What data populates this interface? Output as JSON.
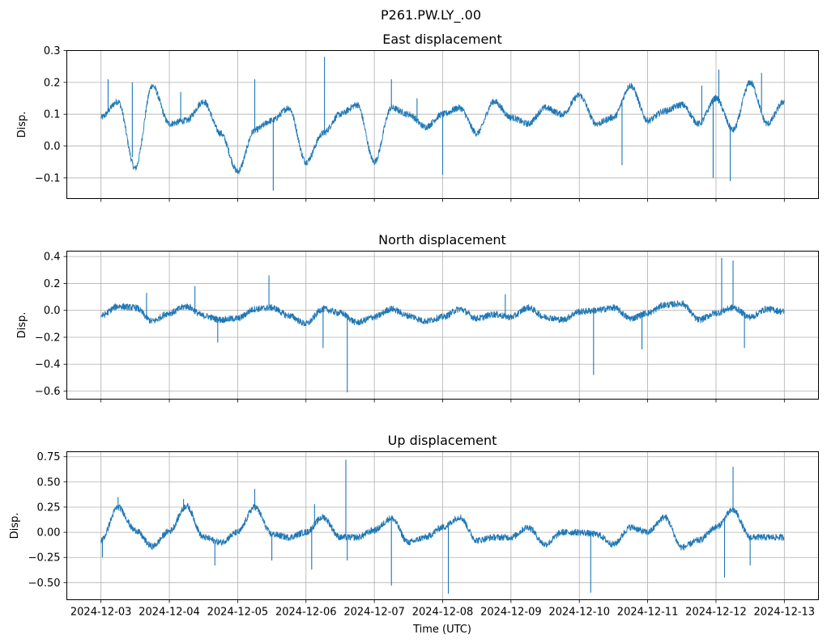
{
  "figure_title": "P261.PW.LY_.00",
  "colors": {
    "line": "#1f77b4",
    "grid": "#b0b0b0",
    "axes": "#000000"
  },
  "chart_data": [
    {
      "type": "line",
      "title": "East displacement",
      "ylabel": "Disp.",
      "xlabel": "",
      "xlim": [
        "2024-12-02T12:00",
        "2024-12-13T12:00"
      ],
      "ylim": [
        -0.165,
        0.3
      ],
      "yticks": [
        -0.1,
        0.0,
        0.1,
        0.2,
        0.3
      ],
      "ytick_labels": [
        "−0.1",
        "0.0",
        "0.1",
        "0.2",
        "0.3"
      ],
      "xtick_labels_visible": false,
      "grid": true,
      "series": [
        {
          "x": [
            "2024-12-03T00:00",
            "2024-12-03T06:00",
            "2024-12-03T12:00",
            "2024-12-03T18:00",
            "2024-12-04T00:00",
            "2024-12-04T06:00",
            "2024-12-04T12:00",
            "2024-12-04T18:00",
            "2024-12-05T00:00",
            "2024-12-05T06:00",
            "2024-12-05T12:00",
            "2024-12-05T18:00",
            "2024-12-06T00:00",
            "2024-12-06T06:00",
            "2024-12-06T12:00",
            "2024-12-06T18:00",
            "2024-12-07T00:00",
            "2024-12-07T06:00",
            "2024-12-07T12:00",
            "2024-12-07T18:00",
            "2024-12-08T00:00",
            "2024-12-08T06:00",
            "2024-12-08T12:00",
            "2024-12-08T18:00",
            "2024-12-09T00:00",
            "2024-12-09T06:00",
            "2024-12-09T12:00",
            "2024-12-09T18:00",
            "2024-12-10T00:00",
            "2024-12-10T06:00",
            "2024-12-10T12:00",
            "2024-12-10T18:00",
            "2024-12-11T00:00",
            "2024-12-11T06:00",
            "2024-12-11T12:00",
            "2024-12-11T18:00",
            "2024-12-12T00:00",
            "2024-12-12T06:00",
            "2024-12-12T12:00",
            "2024-12-12T18:00",
            "2024-12-13T00:00"
          ],
          "y": [
            0.09,
            0.14,
            -0.07,
            0.19,
            0.07,
            0.08,
            0.14,
            0.04,
            -0.08,
            0.05,
            0.08,
            0.12,
            -0.05,
            0.04,
            0.1,
            0.13,
            -0.05,
            0.12,
            0.1,
            0.06,
            0.1,
            0.12,
            0.04,
            0.14,
            0.09,
            0.07,
            0.12,
            0.1,
            0.16,
            0.07,
            0.09,
            0.19,
            0.08,
            0.11,
            0.13,
            0.07,
            0.15,
            0.05,
            0.2,
            0.07,
            0.14
          ],
          "spikes": [
            {
              "x": "2024-12-03T02:30",
              "y": 0.21
            },
            {
              "x": "2024-12-03T11:00",
              "y": 0.2
            },
            {
              "x": "2024-12-04T04:00",
              "y": 0.17
            },
            {
              "x": "2024-12-05T06:00",
              "y": 0.21
            },
            {
              "x": "2024-12-05T12:30",
              "y": -0.14
            },
            {
              "x": "2024-12-06T06:30",
              "y": 0.28
            },
            {
              "x": "2024-12-07T06:00",
              "y": 0.21
            },
            {
              "x": "2024-12-07T15:00",
              "y": 0.15
            },
            {
              "x": "2024-12-08T00:00",
              "y": -0.09
            },
            {
              "x": "2024-12-10T15:00",
              "y": -0.06
            },
            {
              "x": "2024-12-11T19:00",
              "y": 0.19
            },
            {
              "x": "2024-12-11T23:00",
              "y": -0.1
            },
            {
              "x": "2024-12-12T01:00",
              "y": 0.24
            },
            {
              "x": "2024-12-12T05:00",
              "y": -0.11
            },
            {
              "x": "2024-12-12T16:00",
              "y": 0.23
            }
          ]
        }
      ]
    },
    {
      "type": "line",
      "title": "North displacement",
      "ylabel": "Disp.",
      "xlabel": "",
      "xlim": [
        "2024-12-02T12:00",
        "2024-12-13T12:00"
      ],
      "ylim": [
        -0.66,
        0.44
      ],
      "yticks": [
        -0.6,
        -0.4,
        -0.2,
        0.0,
        0.2,
        0.4
      ],
      "ytick_labels": [
        "−0.6",
        "−0.4",
        "−0.2",
        "0.0",
        "0.2",
        "0.4"
      ],
      "xtick_labels_visible": false,
      "grid": true,
      "series": [
        {
          "x": [
            "2024-12-03T00:00",
            "2024-12-03T06:00",
            "2024-12-03T12:00",
            "2024-12-03T18:00",
            "2024-12-04T00:00",
            "2024-12-04T06:00",
            "2024-12-04T12:00",
            "2024-12-04T18:00",
            "2024-12-05T00:00",
            "2024-12-05T06:00",
            "2024-12-05T12:00",
            "2024-12-05T18:00",
            "2024-12-06T00:00",
            "2024-12-06T06:00",
            "2024-12-06T12:00",
            "2024-12-06T18:00",
            "2024-12-07T00:00",
            "2024-12-07T06:00",
            "2024-12-07T12:00",
            "2024-12-07T18:00",
            "2024-12-08T00:00",
            "2024-12-08T06:00",
            "2024-12-08T12:00",
            "2024-12-08T18:00",
            "2024-12-09T00:00",
            "2024-12-09T06:00",
            "2024-12-09T12:00",
            "2024-12-09T18:00",
            "2024-12-10T00:00",
            "2024-12-10T06:00",
            "2024-12-10T12:00",
            "2024-12-10T18:00",
            "2024-12-11T00:00",
            "2024-12-11T06:00",
            "2024-12-11T12:00",
            "2024-12-11T18:00",
            "2024-12-12T00:00",
            "2024-12-12T06:00",
            "2024-12-12T12:00",
            "2024-12-12T18:00",
            "2024-12-13T00:00"
          ],
          "y": [
            -0.04,
            0.03,
            0.02,
            -0.08,
            -0.02,
            0.03,
            -0.04,
            -0.07,
            -0.06,
            0.01,
            0.02,
            -0.04,
            -0.1,
            0.01,
            -0.02,
            -0.09,
            -0.05,
            0.01,
            -0.04,
            -0.08,
            -0.05,
            0.01,
            -0.06,
            -0.03,
            -0.05,
            0.02,
            -0.05,
            -0.07,
            -0.01,
            0.0,
            0.02,
            -0.06,
            -0.02,
            0.04,
            0.05,
            -0.07,
            -0.02,
            0.02,
            -0.05,
            0.01,
            -0.01
          ],
          "spikes": [
            {
              "x": "2024-12-03T16:00",
              "y": 0.13
            },
            {
              "x": "2024-12-04T09:00",
              "y": 0.18
            },
            {
              "x": "2024-12-04T17:00",
              "y": -0.24
            },
            {
              "x": "2024-12-05T11:00",
              "y": 0.26
            },
            {
              "x": "2024-12-06T06:00",
              "y": -0.28
            },
            {
              "x": "2024-12-06T14:30",
              "y": -0.61
            },
            {
              "x": "2024-12-08T22:00",
              "y": 0.12
            },
            {
              "x": "2024-12-10T05:00",
              "y": -0.48
            },
            {
              "x": "2024-12-10T22:00",
              "y": -0.29
            },
            {
              "x": "2024-12-12T02:00",
              "y": 0.39
            },
            {
              "x": "2024-12-12T06:00",
              "y": 0.37
            },
            {
              "x": "2024-12-12T10:00",
              "y": -0.28
            }
          ]
        }
      ]
    },
    {
      "type": "line",
      "title": "Up displacement",
      "ylabel": "Disp.",
      "xlabel": "Time (UTC)",
      "xlim": [
        "2024-12-02T12:00",
        "2024-12-13T12:00"
      ],
      "ylim": [
        -0.67,
        0.8
      ],
      "yticks": [
        -0.5,
        -0.25,
        0.0,
        0.25,
        0.5,
        0.75
      ],
      "ytick_labels": [
        "−0.50",
        "−0.25",
        "0.00",
        "0.25",
        "0.50",
        "0.75"
      ],
      "xticks": [
        "2024-12-03",
        "2024-12-04",
        "2024-12-05",
        "2024-12-06",
        "2024-12-07",
        "2024-12-08",
        "2024-12-09",
        "2024-12-10",
        "2024-12-11",
        "2024-12-12",
        "2024-12-13"
      ],
      "xtick_labels": [
        "2024-12-03",
        "2024-12-04",
        "2024-12-05",
        "2024-12-06",
        "2024-12-07",
        "2024-12-08",
        "2024-12-09",
        "2024-12-10",
        "2024-12-11",
        "2024-12-12",
        "2024-12-13"
      ],
      "xtick_labels_visible": true,
      "grid": true,
      "series": [
        {
          "x": [
            "2024-12-03T00:00",
            "2024-12-03T06:00",
            "2024-12-03T12:00",
            "2024-12-03T18:00",
            "2024-12-04T00:00",
            "2024-12-04T06:00",
            "2024-12-04T12:00",
            "2024-12-04T18:00",
            "2024-12-05T00:00",
            "2024-12-05T06:00",
            "2024-12-05T12:00",
            "2024-12-05T18:00",
            "2024-12-06T00:00",
            "2024-12-06T06:00",
            "2024-12-06T12:00",
            "2024-12-06T18:00",
            "2024-12-07T00:00",
            "2024-12-07T06:00",
            "2024-12-07T12:00",
            "2024-12-07T18:00",
            "2024-12-08T00:00",
            "2024-12-08T06:00",
            "2024-12-08T12:00",
            "2024-12-08T18:00",
            "2024-12-09T00:00",
            "2024-12-09T06:00",
            "2024-12-09T12:00",
            "2024-12-09T18:00",
            "2024-12-10T00:00",
            "2024-12-10T06:00",
            "2024-12-10T12:00",
            "2024-12-10T18:00",
            "2024-12-11T00:00",
            "2024-12-11T06:00",
            "2024-12-11T12:00",
            "2024-12-11T18:00",
            "2024-12-12T00:00",
            "2024-12-12T06:00",
            "2024-12-12T12:00",
            "2024-12-12T18:00",
            "2024-12-13T00:00"
          ],
          "y": [
            -0.08,
            0.25,
            0.02,
            -0.14,
            0.01,
            0.26,
            -0.05,
            -0.1,
            0.0,
            0.25,
            -0.02,
            -0.05,
            0.0,
            0.15,
            -0.05,
            -0.05,
            0.02,
            0.14,
            -0.1,
            -0.05,
            0.05,
            0.15,
            -0.08,
            -0.05,
            -0.05,
            0.05,
            -0.12,
            0.0,
            0.0,
            -0.02,
            -0.12,
            0.05,
            0.0,
            0.15,
            -0.15,
            -0.08,
            0.05,
            0.22,
            -0.05,
            -0.05,
            -0.05
          ],
          "spikes": [
            {
              "x": "2024-12-03T00:30",
              "y": -0.25
            },
            {
              "x": "2024-12-03T06:00",
              "y": 0.35
            },
            {
              "x": "2024-12-04T05:00",
              "y": 0.33
            },
            {
              "x": "2024-12-04T16:00",
              "y": -0.33
            },
            {
              "x": "2024-12-05T06:00",
              "y": 0.43
            },
            {
              "x": "2024-12-05T12:00",
              "y": -0.28
            },
            {
              "x": "2024-12-06T03:00",
              "y": 0.28
            },
            {
              "x": "2024-12-06T02:00",
              "y": -0.37
            },
            {
              "x": "2024-12-06T14:00",
              "y": 0.72
            },
            {
              "x": "2024-12-06T14:30",
              "y": -0.28
            },
            {
              "x": "2024-12-07T06:00",
              "y": -0.53
            },
            {
              "x": "2024-12-08T02:00",
              "y": -0.61
            },
            {
              "x": "2024-12-10T04:00",
              "y": -0.6
            },
            {
              "x": "2024-12-12T03:00",
              "y": -0.45
            },
            {
              "x": "2024-12-12T06:00",
              "y": 0.65
            },
            {
              "x": "2024-12-12T12:00",
              "y": -0.33
            }
          ]
        }
      ]
    }
  ]
}
